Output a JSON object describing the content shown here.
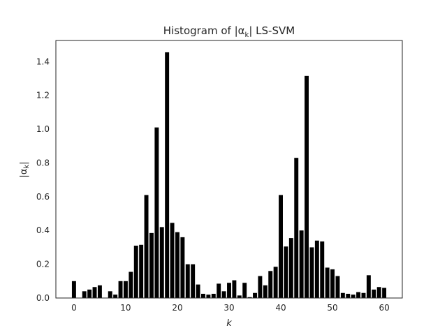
{
  "chart_data": {
    "type": "bar",
    "title_main": "Histogram of |α",
    "title_sub": "k",
    "title_tail": "| LS-SVM",
    "xlabel": "k",
    "ylabel_main": "|α",
    "ylabel_sub": "k",
    "ylabel_tail": "|",
    "xlim": [
      -3.5,
      63.5
    ],
    "ylim": [
      0,
      1.525
    ],
    "xticks": [
      0,
      10,
      20,
      30,
      40,
      50,
      60
    ],
    "xtick_labels": [
      "0",
      "10",
      "20",
      "30",
      "40",
      "50",
      "60"
    ],
    "yticks": [
      0.0,
      0.2,
      0.4,
      0.6,
      0.8,
      1.0,
      1.2,
      1.4
    ],
    "ytick_labels": [
      "0.0",
      "0.2",
      "0.4",
      "0.6",
      "0.8",
      "1.0",
      "1.2",
      "1.4"
    ],
    "grid": false,
    "bar_color": "#000000",
    "x": [
      0,
      1,
      2,
      3,
      4,
      5,
      6,
      7,
      8,
      9,
      10,
      11,
      12,
      13,
      14,
      15,
      16,
      17,
      18,
      19,
      20,
      21,
      22,
      23,
      24,
      25,
      26,
      27,
      28,
      29,
      30,
      31,
      32,
      33,
      34,
      35,
      36,
      37,
      38,
      39,
      40,
      41,
      42,
      43,
      44,
      45,
      46,
      47,
      48,
      49,
      50,
      51,
      52,
      53,
      54,
      55,
      56,
      57,
      58,
      59,
      60
    ],
    "values": [
      0.1,
      0.0,
      0.04,
      0.05,
      0.065,
      0.075,
      0.0,
      0.04,
      0.02,
      0.1,
      0.1,
      0.155,
      0.31,
      0.315,
      0.61,
      0.385,
      1.01,
      0.42,
      1.455,
      0.445,
      0.39,
      0.36,
      0.2,
      0.2,
      0.08,
      0.025,
      0.02,
      0.025,
      0.085,
      0.04,
      0.09,
      0.105,
      0.015,
      0.09,
      0.005,
      0.03,
      0.13,
      0.075,
      0.16,
      0.185,
      0.61,
      0.305,
      0.355,
      0.83,
      0.4,
      1.315,
      0.3,
      0.34,
      0.335,
      0.18,
      0.17,
      0.13,
      0.03,
      0.025,
      0.02,
      0.035,
      0.03,
      0.135,
      0.05,
      0.065,
      0.06
    ]
  }
}
